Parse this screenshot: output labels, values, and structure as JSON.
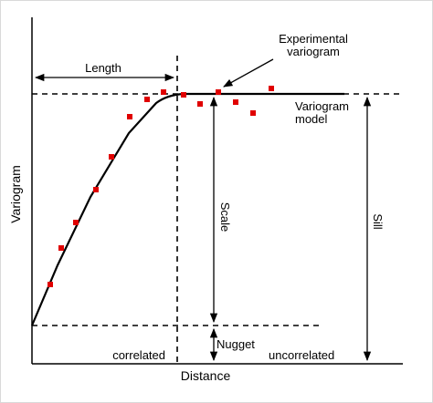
{
  "labels": {
    "y_axis": "Variogram",
    "x_axis": "Distance",
    "length": "Length",
    "experimental_line1": "Experimental",
    "experimental_line2": "variogram",
    "model_line1": "Variogram",
    "model_line2": "model",
    "scale": "Scale",
    "sill": "Sill",
    "nugget": "Nugget",
    "correlated": "correlated",
    "uncorrelated": "uncorrelated"
  },
  "colors": {
    "axis": "#000000",
    "model_line": "#000000",
    "experimental_points": "#e00000"
  }
}
